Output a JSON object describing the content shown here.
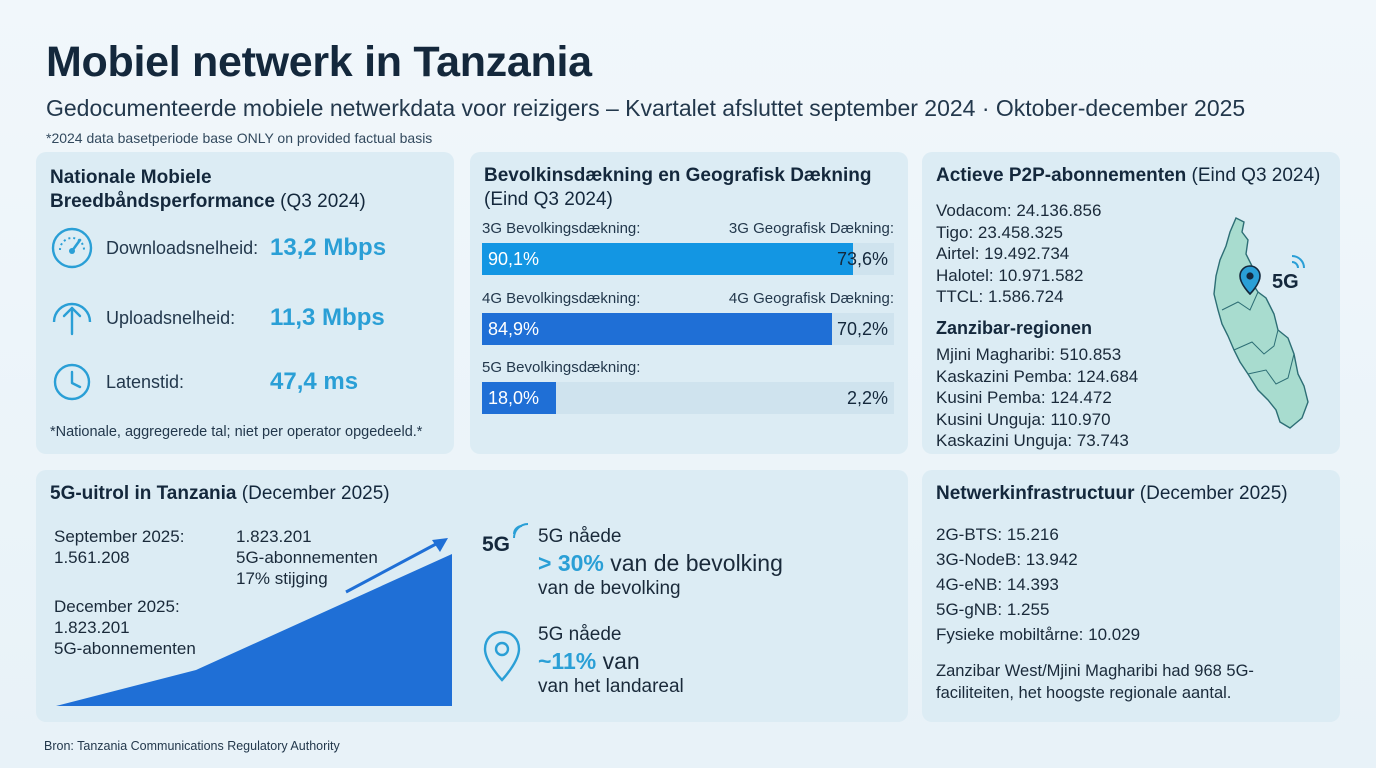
{
  "header": {
    "title": "Mobiel netwerk in Tanzania",
    "subtitle": "Gedocumenteerde mobiele netwerkdata voor reizigers – Kvartalet afsluttet september 2024 · Oktober-december 2025",
    "note": "*2024 data basetperiode base ONLY on provided factual basis"
  },
  "performance": {
    "title_bold": "Nationale Mobiele Breedbåndsperformance",
    "title_suffix": " (Q3 2024)",
    "download_label": "Downloadsnelheid:",
    "download_value": "13,2 Mbps",
    "upload_label": "Uploadsnelheid:",
    "upload_value": "11,3 Mbps",
    "latency_label": "Latenstid:",
    "latency_value": "47,4 ms",
    "note": "*Nationale, aggregerede tal; niet per operator opgedeeld.*",
    "icons": [
      "speedometer-icon",
      "upload-arrow-icon",
      "clock-icon"
    ]
  },
  "coverage": {
    "title_bold": "Bevolkinsdækning en Geografisk Dækning",
    "title_suffix": "(Eind Q3 2024)",
    "rows": [
      {
        "left_label": "3G Bevolkingsdækning:",
        "right_label": "3G Geografisk Dækning:",
        "population": "90,1%",
        "population_value": 90.1,
        "geographic": "73,6%",
        "color": "#1396e3"
      },
      {
        "left_label": "4G Bevolkingsdækning:",
        "right_label": "4G Geografisk Dækning:",
        "population": "84,9%",
        "population_value": 84.9,
        "geographic": "70,2%",
        "color": "#1f6fd6"
      },
      {
        "left_label": "5G Bevolkingsdækning:",
        "right_label": "",
        "population": "18,0%",
        "population_value": 18.0,
        "geographic": "2,2%",
        "color": "#1f6fd6"
      }
    ]
  },
  "subscriptions": {
    "title_bold": "Actieve P2P-abonnementen",
    "title_suffix": " (Eind Q3 2024)",
    "operators": [
      "Vodacom: 24.136.856",
      "Tigo: 23.458.325",
      "Airtel: 19.492.734",
      "Halotel: 10.971.582",
      "TTCL: 1.586.724"
    ],
    "zanzibar_title": "Zanzibar-regionen",
    "zanzibar": [
      "Mjini Magharibi: 510.853",
      "Kaskazini Pemba: 124.684",
      "Kusini Pemba: 124.472",
      "Kusini Unguja: 110.970",
      "Kaskazini Unguja: 73.743"
    ],
    "map_label": "5G",
    "map_color": "#a8dccf"
  },
  "rollout": {
    "title_bold": "5G-uitrol in Tanzania",
    "title_suffix": " (December 2025)",
    "sep_line1": "September 2025:",
    "sep_line2": "1.561.208",
    "dec_line1": "December 2025:",
    "dec_line2": "1.823.201",
    "dec_line3": "5G-abonnementen",
    "peak_line1": "1.823.201",
    "peak_line2": "5G-abonnementen",
    "peak_line3": "17% stijging",
    "badge_5g": "5G",
    "pop_line1": "5G nåede",
    "pop_highlight": "> 30%",
    "pop_rest": " van de bevolking",
    "pop_line3": "van de bevolking",
    "land_line1": "5G nåede",
    "land_highlight": "~11%",
    "land_rest": " van",
    "land_line3": "van het landareal",
    "area_color": "#1f6fd6"
  },
  "infrastructure": {
    "title_bold": "Netwerkinfrastructuur",
    "title_suffix": " (December 2025)",
    "items": [
      "2G-BTS: 15.216",
      "3G-NodeB: 13.942",
      "4G-eNB: 14.393",
      "5G-gNB: 1.255",
      "Fysieke mobiltårne: 10.029"
    ],
    "note": "Zanzibar West/Mjini Magharibi had 968 5G-faciliteiten, het hoogste regionale aantal."
  },
  "source": "Bron: Tanzania Communications Regulatory Authority"
}
